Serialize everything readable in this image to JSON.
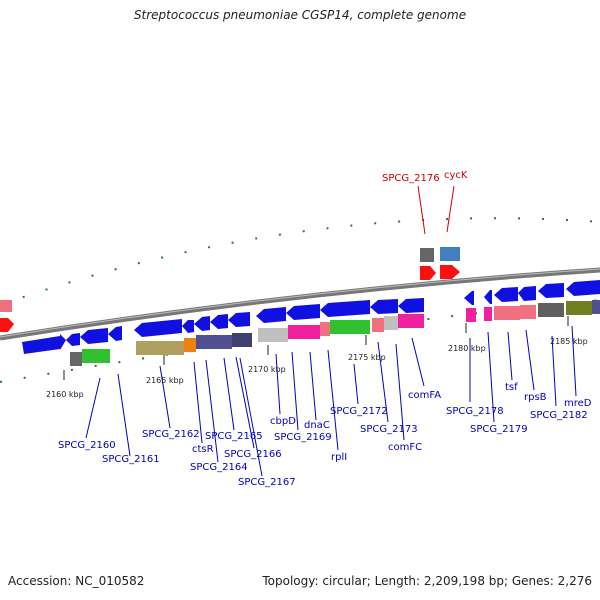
{
  "title": "Streptococcus pneumoniae CGSP14, complete genome",
  "accession": "Accession: NC_010582",
  "topology": "Topology: circular; Length: 2,209,198 bp; Genes: 2,276",
  "colors": {
    "blue_gene": "#1010e0",
    "red_gene": "#ff1010",
    "backbone": "#808080",
    "label_blue": "#0000c0",
    "label_red": "#d00000",
    "tick": "#208020"
  },
  "ticks": [
    "2160 kbp",
    "2165 kbp",
    "2170 kbp",
    "2175 kbp",
    "2180 kbp",
    "2185 kbp"
  ],
  "gene_labels": [
    {
      "text": "SPCG_2176",
      "color": "red"
    },
    {
      "text": "cycK",
      "color": "red"
    },
    {
      "text": "SPCG_2160",
      "color": "blue"
    },
    {
      "text": "SPCG_2161",
      "color": "blue"
    },
    {
      "text": "SPCG_2162",
      "color": "blue"
    },
    {
      "text": "ctsR",
      "color": "blue"
    },
    {
      "text": "SPCG_2164",
      "color": "blue"
    },
    {
      "text": "SPCG_2165",
      "color": "blue"
    },
    {
      "text": "SPCG_2166",
      "color": "blue"
    },
    {
      "text": "SPCG_2167",
      "color": "blue"
    },
    {
      "text": "cbpD",
      "color": "blue"
    },
    {
      "text": "SPCG_2169",
      "color": "blue"
    },
    {
      "text": "dnaC",
      "color": "blue"
    },
    {
      "text": "rplI",
      "color": "blue"
    },
    {
      "text": "SPCG_2172",
      "color": "blue"
    },
    {
      "text": "SPCG_2173",
      "color": "blue"
    },
    {
      "text": "comFC",
      "color": "blue"
    },
    {
      "text": "comFA",
      "color": "blue"
    },
    {
      "text": "SPCG_2178",
      "color": "blue"
    },
    {
      "text": "SPCG_2179",
      "color": "blue"
    },
    {
      "text": "tsf",
      "color": "blue"
    },
    {
      "text": "rpsB",
      "color": "blue"
    },
    {
      "text": "SPCG_2182",
      "color": "blue"
    },
    {
      "text": "mreD",
      "color": "blue"
    }
  ]
}
